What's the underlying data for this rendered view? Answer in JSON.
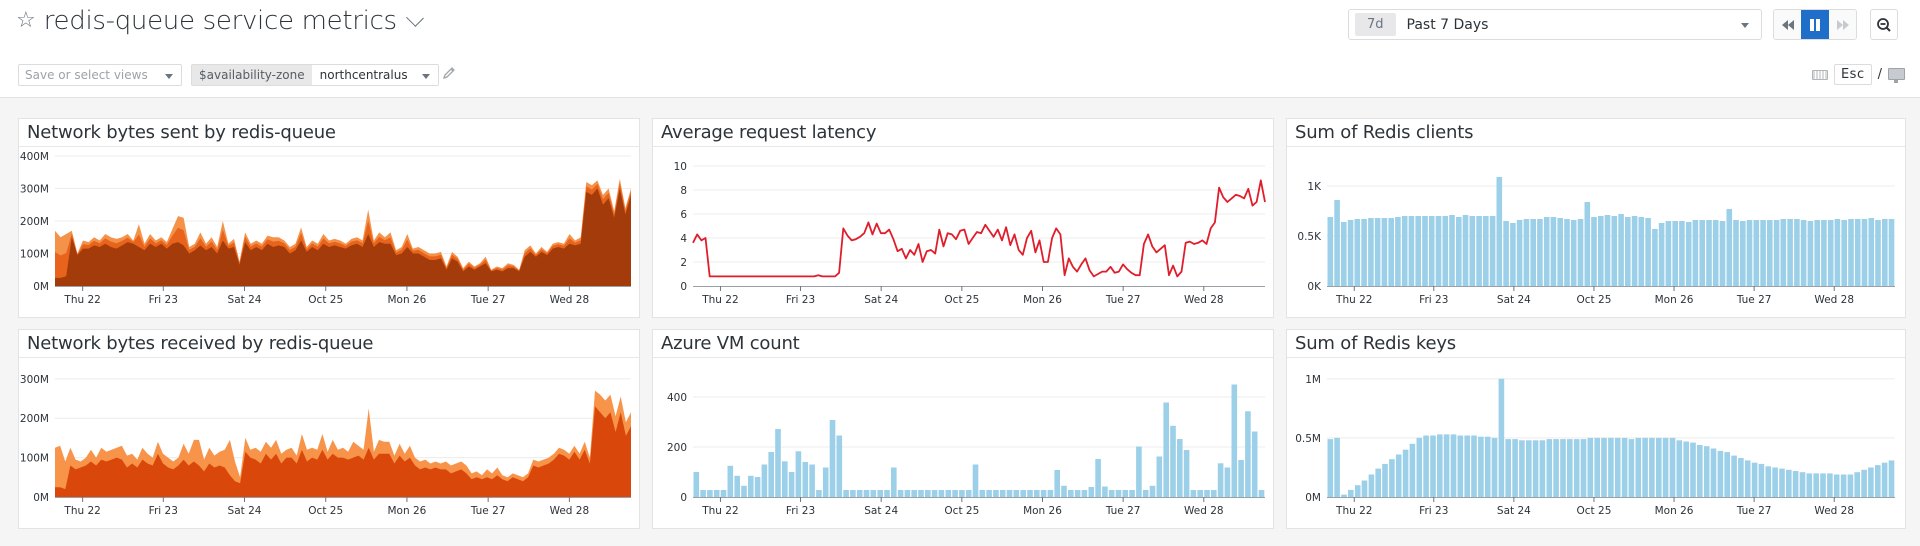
{
  "header": {
    "title": "redis-queue service metrics",
    "views_placeholder": "Save or select views",
    "template_var": {
      "name": "$availability-zone",
      "value": "northcentralus"
    },
    "time": {
      "badge": "7d",
      "label": "Past 7 Days"
    },
    "controls": {
      "rewind": "rewind",
      "pause": "pause",
      "forward": "fast-forward",
      "zoom_out": "zoom-out"
    },
    "shortcut": {
      "esc": "Esc",
      "separator": "/"
    }
  },
  "x_ticks": [
    "Thu 22",
    "Fri 23",
    "Sat 24",
    "Oct 25",
    "Mon 26",
    "Tue 27",
    "Wed 28"
  ],
  "colors": {
    "bytes_sent_dark": "#a33b0a",
    "bytes_sent_mid": "#e8631c",
    "bytes_sent_light": "#f5924a",
    "bytes_recv_dark": "#d9480a",
    "bytes_recv_light": "#f7944a",
    "latency": "#e01e2b",
    "bars": "#9ccfe8",
    "grid": "#ececec"
  },
  "widgets": [
    {
      "id": "sent",
      "title": "Network bytes sent by redis-queue"
    },
    {
      "id": "latency",
      "title": "Average request latency"
    },
    {
      "id": "clients",
      "title": "Sum of Redis clients"
    },
    {
      "id": "recv",
      "title": "Network bytes received by redis-queue"
    },
    {
      "id": "vms",
      "title": "Azure VM count"
    },
    {
      "id": "keys",
      "title": "Sum of Redis keys"
    }
  ],
  "chart_data": [
    {
      "id": "sent",
      "type": "area",
      "title": "Network bytes sent by redis-queue",
      "yticks": [
        "0M",
        "100M",
        "200M",
        "300M",
        "400M"
      ],
      "ylim": [
        0,
        400
      ],
      "x_ticks": [
        "Thu 22",
        "Fri 23",
        "Sat 24",
        "Oct 25",
        "Mon 26",
        "Tue 27",
        "Wed 28"
      ],
      "series": [
        {
          "name": "total",
          "values": [
            170,
            150,
            160,
            170,
            100,
            140,
            135,
            150,
            140,
            160,
            150,
            145,
            150,
            160,
            140,
            190,
            130,
            160,
            140,
            150,
            135,
            175,
            215,
            210,
            120,
            130,
            165,
            130,
            150,
            120,
            200,
            130,
            145,
            75,
            165,
            130,
            140,
            130,
            155,
            150,
            150,
            140,
            120,
            130,
            180,
            120,
            140,
            130,
            160,
            140,
            145,
            140,
            130,
            145,
            150,
            140,
            235,
            140,
            165,
            150,
            165,
            110,
            120,
            160,
            115,
            120,
            110,
            100,
            100,
            105,
            60,
            105,
            90,
            55,
            75,
            60,
            70,
            90,
            50,
            60,
            55,
            70,
            65,
            50,
            110,
            125,
            100,
            120,
            105,
            130,
            135,
            130,
            160,
            140,
            150,
            320,
            310,
            325,
            280,
            300,
            230,
            330,
            240,
            300
          ]
        },
        {
          "name": "inner",
          "values": [
            25,
            25,
            30,
            150,
            95,
            115,
            115,
            125,
            120,
            130,
            120,
            115,
            125,
            135,
            130,
            120,
            110,
            130,
            120,
            130,
            115,
            130,
            135,
            125,
            100,
            110,
            125,
            110,
            120,
            100,
            140,
            115,
            120,
            65,
            135,
            110,
            120,
            110,
            130,
            120,
            125,
            120,
            100,
            110,
            140,
            105,
            120,
            110,
            130,
            120,
            125,
            120,
            115,
            125,
            130,
            120,
            160,
            120,
            135,
            130,
            130,
            95,
            100,
            120,
            100,
            100,
            90,
            80,
            80,
            85,
            50,
            85,
            75,
            45,
            60,
            50,
            60,
            70,
            45,
            50,
            45,
            55,
            55,
            45,
            90,
            105,
            90,
            105,
            95,
            115,
            120,
            115,
            130,
            125,
            130,
            290,
            280,
            300,
            250,
            270,
            210,
            300,
            220,
            280
          ]
        }
      ]
    },
    {
      "id": "latency",
      "type": "line",
      "title": "Average request latency",
      "yticks": [
        "0",
        "2",
        "4",
        "6",
        "8",
        "10"
      ],
      "ylim": [
        0,
        10
      ],
      "x_ticks": [
        "Thu 22",
        "Fri 23",
        "Sat 24",
        "Oct 25",
        "Mon 26",
        "Tue 27",
        "Wed 28"
      ],
      "values": [
        3.6,
        4.3,
        3.8,
        4.0,
        0.8,
        0.8,
        0.8,
        0.8,
        0.8,
        0.8,
        0.8,
        0.8,
        0.8,
        0.8,
        0.8,
        0.8,
        0.8,
        0.8,
        0.8,
        0.8,
        0.8,
        0.8,
        0.8,
        0.8,
        0.8,
        0.8,
        0.8,
        0.8,
        0.8,
        0.8,
        0.9,
        0.8,
        0.8,
        0.8,
        0.8,
        1.1,
        4.8,
        4.2,
        3.8,
        3.9,
        4.1,
        4.4,
        5.3,
        4.3,
        5.2,
        4.4,
        4.4,
        4.7,
        3.9,
        2.9,
        3.1,
        2.3,
        3.0,
        2.6,
        3.5,
        2.0,
        2.9,
        3.0,
        2.7,
        4.7,
        3.3,
        4.4,
        4.3,
        3.9,
        4.6,
        4.7,
        3.5,
        4.0,
        4.5,
        4.4,
        5.1,
        4.6,
        4.1,
        4.7,
        3.8,
        4.9,
        3.4,
        4.3,
        3.0,
        2.6,
        4.0,
        4.6,
        2.8,
        3.8,
        2.0,
        2.0,
        4.0,
        4.8,
        4.3,
        0.9,
        2.3,
        1.6,
        1.2,
        1.8,
        2.3,
        1.3,
        0.8,
        1.0,
        1.2,
        1.2,
        1.6,
        1.1,
        1.2,
        1.8,
        1.4,
        1.1,
        0.9,
        0.9,
        3.5,
        4.3,
        3.3,
        2.8,
        3.1,
        3.4,
        0.9,
        1.7,
        0.8,
        1.2,
        3.6,
        3.7,
        3.5,
        3.6,
        3.8,
        3.5,
        4.8,
        5.3,
        8.2,
        7.4,
        7.0,
        7.3,
        7.6,
        7.5,
        7.3,
        8.1,
        6.7,
        7.0,
        8.8,
        7.0
      ]
    },
    {
      "id": "clients",
      "type": "bar",
      "title": "Sum of Redis clients",
      "yticks": [
        "0K",
        "0.5K",
        "1K"
      ],
      "ylim": [
        0,
        1.3
      ],
      "x_ticks": [
        "Thu 22",
        "Fri 23",
        "Sat 24",
        "Oct 25",
        "Mon 26",
        "Tue 27",
        "Wed 28"
      ],
      "values": [
        0.69,
        0.86,
        0.64,
        0.66,
        0.67,
        0.67,
        0.68,
        0.68,
        0.68,
        0.68,
        0.69,
        0.7,
        0.7,
        0.7,
        0.7,
        0.7,
        0.7,
        0.7,
        0.71,
        0.69,
        0.71,
        0.7,
        0.7,
        0.7,
        0.7,
        1.09,
        0.65,
        0.63,
        0.66,
        0.67,
        0.67,
        0.67,
        0.69,
        0.69,
        0.68,
        0.67,
        0.66,
        0.67,
        0.84,
        0.69,
        0.7,
        0.71,
        0.7,
        0.72,
        0.69,
        0.7,
        0.69,
        0.68,
        0.57,
        0.63,
        0.65,
        0.65,
        0.65,
        0.64,
        0.66,
        0.66,
        0.66,
        0.66,
        0.65,
        0.77,
        0.66,
        0.65,
        0.66,
        0.66,
        0.66,
        0.66,
        0.66,
        0.67,
        0.67,
        0.67,
        0.66,
        0.65,
        0.66,
        0.66,
        0.66,
        0.67,
        0.66,
        0.67,
        0.67,
        0.67,
        0.68,
        0.66,
        0.67,
        0.67
      ]
    },
    {
      "id": "recv",
      "type": "area",
      "title": "Network bytes received by redis-queue",
      "yticks": [
        "0M",
        "100M",
        "200M",
        "300M"
      ],
      "ylim": [
        0,
        330
      ],
      "x_ticks": [
        "Thu 22",
        "Fri 23",
        "Sat 24",
        "Oct 25",
        "Mon 26",
        "Tue 27",
        "Wed 28"
      ],
      "series": [
        {
          "name": "total",
          "values": [
            125,
            130,
            90,
            125,
            95,
            90,
            100,
            120,
            100,
            125,
            115,
            120,
            125,
            130,
            105,
            110,
            95,
            125,
            110,
            100,
            140,
            110,
            100,
            90,
            100,
            135,
            110,
            145,
            145,
            95,
            125,
            105,
            115,
            120,
            145,
            90,
            50,
            150,
            120,
            125,
            115,
            140,
            125,
            145,
            110,
            120,
            125,
            105,
            160,
            120,
            125,
            120,
            160,
            115,
            145,
            120,
            125,
            115,
            140,
            130,
            120,
            225,
            115,
            145,
            140,
            140,
            105,
            135,
            110,
            130,
            100,
            90,
            95,
            85,
            90,
            85,
            90,
            80,
            85,
            90,
            80,
            60,
            65,
            55,
            70,
            60,
            75,
            55,
            50,
            60,
            55,
            50,
            60,
            95,
            90,
            95,
            100,
            110,
            125,
            120,
            110,
            130,
            110,
            140,
            100,
            270,
            260,
            245,
            260,
            205,
            255,
            190,
            215
          ]
        },
        {
          "name": "inner",
          "values": [
            25,
            25,
            20,
            80,
            70,
            75,
            80,
            90,
            80,
            95,
            90,
            95,
            100,
            95,
            75,
            85,
            75,
            95,
            85,
            80,
            110,
            85,
            75,
            70,
            80,
            95,
            80,
            90,
            80,
            65,
            85,
            75,
            80,
            75,
            55,
            40,
            35,
            115,
            100,
            95,
            85,
            110,
            95,
            110,
            85,
            100,
            100,
            85,
            120,
            90,
            100,
            95,
            120,
            95,
            110,
            100,
            100,
            95,
            100,
            105,
            95,
            125,
            95,
            110,
            110,
            110,
            85,
            105,
            90,
            100,
            80,
            70,
            75,
            70,
            75,
            70,
            70,
            60,
            65,
            70,
            60,
            45,
            50,
            45,
            50,
            45,
            55,
            45,
            40,
            50,
            45,
            40,
            50,
            80,
            75,
            80,
            85,
            95,
            110,
            105,
            95,
            115,
            95,
            120,
            85,
            230,
            215,
            200,
            215,
            165,
            215,
            155,
            180
          ]
        }
      ]
    },
    {
      "id": "vms",
      "type": "bar",
      "title": "Azure VM count",
      "yticks": [
        "0",
        "200",
        "400"
      ],
      "ylim": [
        0,
        520
      ],
      "x_ticks": [
        "Thu 22",
        "Fri 23",
        "Sat 24",
        "Oct 25",
        "Mon 26",
        "Tue 27",
        "Wed 28"
      ],
      "values": [
        100,
        28,
        28,
        28,
        28,
        125,
        85,
        45,
        85,
        80,
        130,
        180,
        272,
        143,
        100,
        183,
        140,
        130,
        28,
        118,
        308,
        246,
        28,
        28,
        28,
        28,
        28,
        28,
        28,
        118,
        28,
        28,
        28,
        28,
        28,
        28,
        28,
        28,
        28,
        28,
        28,
        130,
        28,
        28,
        28,
        28,
        28,
        28,
        28,
        28,
        28,
        28,
        28,
        108,
        45,
        28,
        28,
        28,
        40,
        152,
        42,
        28,
        28,
        28,
        28,
        202,
        28,
        45,
        162,
        378,
        285,
        232,
        188,
        28,
        28,
        28,
        28,
        135,
        118,
        450,
        148,
        343,
        262,
        28
      ]
    },
    {
      "id": "keys",
      "type": "bar",
      "title": "Sum of Redis keys",
      "yticks": [
        "0M",
        "0.5M",
        "1M"
      ],
      "ylim": [
        0,
        1.1
      ],
      "x_ticks": [
        "Thu 22",
        "Fri 23",
        "Sat 24",
        "Oct 25",
        "Mon 26",
        "Tue 27",
        "Wed 28"
      ],
      "values": [
        0.49,
        0.5,
        0.02,
        0.06,
        0.1,
        0.14,
        0.19,
        0.24,
        0.28,
        0.32,
        0.36,
        0.4,
        0.45,
        0.5,
        0.52,
        0.52,
        0.53,
        0.53,
        0.53,
        0.52,
        0.52,
        0.52,
        0.51,
        0.51,
        0.5,
        1.0,
        0.49,
        0.49,
        0.48,
        0.48,
        0.48,
        0.48,
        0.49,
        0.49,
        0.49,
        0.49,
        0.49,
        0.49,
        0.5,
        0.5,
        0.5,
        0.5,
        0.5,
        0.5,
        0.49,
        0.5,
        0.5,
        0.5,
        0.5,
        0.5,
        0.5,
        0.48,
        0.47,
        0.46,
        0.44,
        0.43,
        0.41,
        0.39,
        0.38,
        0.35,
        0.33,
        0.31,
        0.29,
        0.28,
        0.26,
        0.25,
        0.24,
        0.23,
        0.22,
        0.21,
        0.2,
        0.2,
        0.2,
        0.2,
        0.19,
        0.19,
        0.19,
        0.21,
        0.23,
        0.25,
        0.27,
        0.29,
        0.31
      ]
    }
  ]
}
